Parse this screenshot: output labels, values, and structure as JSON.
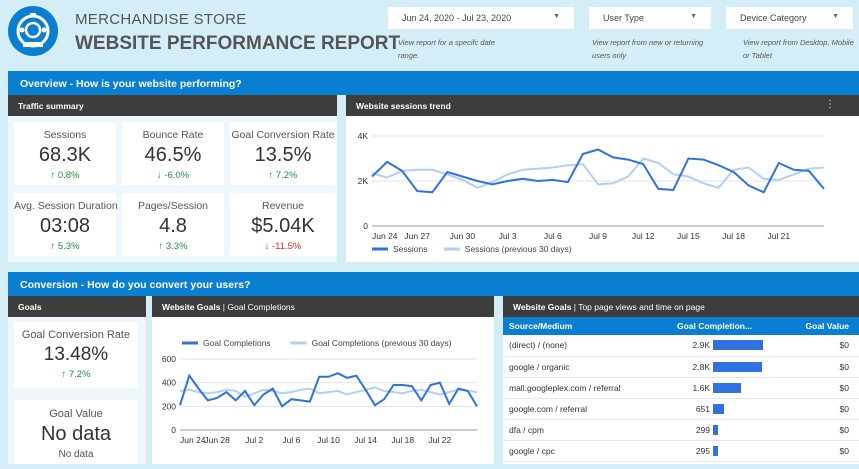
{
  "header": {
    "store": "MERCHANDISE STORE",
    "report": "WEBSITE PERFORMANCE REPORT",
    "date_range": "Jun 24, 2020 - Jul 23, 2020",
    "date_hint": "View report for a specifc date range.",
    "user_type": "User Type",
    "user_hint": "View report from new or returning users only",
    "device": "Device Category",
    "device_hint": "View report from Desktop, Mobile or Tablet"
  },
  "overview": {
    "title": "Overview -  How is your website performing?",
    "traffic_title": "Traffic summary",
    "sessions_title": "Website sessions trend",
    "kpis": [
      {
        "label": "Sessions",
        "value": "68.3K",
        "delta": "↑ 0.8%",
        "dir": "up"
      },
      {
        "label": "Bounce Rate",
        "value": "46.5%",
        "delta": "↓ -6.0%",
        "dir": "up"
      },
      {
        "label": "Goal Conversion Rate",
        "value": "13.5%",
        "delta": "↑ 7.2%",
        "dir": "up"
      },
      {
        "label": "Avg. Session Duration",
        "value": "03:08",
        "delta": "↑ 5.3%",
        "dir": "up"
      },
      {
        "label": "Pages/Session",
        "value": "4.8",
        "delta": "↑ 3.3%",
        "dir": "up"
      },
      {
        "label": "Revenue",
        "value": "$5.04K",
        "delta": "↓ -11.5%",
        "dir": "dn"
      }
    ]
  },
  "conversion": {
    "title": "Conversion -  How do you convert your users?",
    "goals_title": "Goals",
    "chart_title_bold": "Website Goals",
    "chart_title_rest": " | Goal Completions",
    "table_title_bold": "Website Goals",
    "table_title_rest": " | Top page views and time on page",
    "goal_rate_label": "Goal Conversion Rate",
    "goal_rate_value": "13.48%",
    "goal_rate_delta": "↑ 7.2%",
    "goal_value_label": "Goal Value",
    "goal_value_value": "No data",
    "goal_value_sub": "No data",
    "table": {
      "headers": [
        "Source/Medium",
        "Goal Completion...",
        "Goal Value"
      ],
      "rows": [
        {
          "source": "(direct) / (none)",
          "completions": "2.9K",
          "frac": 1.0,
          "value": "$0"
        },
        {
          "source": "google / organic",
          "completions": "2.8K",
          "frac": 0.97,
          "value": "$0"
        },
        {
          "source": "mall.googleplex.com / referral",
          "completions": "1.6K",
          "frac": 0.55,
          "value": "$0"
        },
        {
          "source": "google.com / referral",
          "completions": "651",
          "frac": 0.22,
          "value": "$0"
        },
        {
          "source": "dfa / cpm",
          "completions": "299",
          "frac": 0.1,
          "value": "$0"
        },
        {
          "source": "google / cpc",
          "completions": "295",
          "frac": 0.1,
          "value": "$0"
        }
      ]
    }
  },
  "chart_data": [
    {
      "type": "line",
      "title": "Website sessions trend",
      "ylim": [
        0,
        4000
      ],
      "yticks": [
        "4K",
        "2K",
        "0"
      ],
      "tick_values": [
        4000,
        2000,
        0
      ],
      "xticks": [
        "Jun 24",
        "Jun 27",
        "Jun 30",
        "Jul 3",
        "Jul 6",
        "Jul 9",
        "Jul 12",
        "Jul 15",
        "Jul 18",
        "Jul 21"
      ],
      "series": [
        {
          "name": "Sessions",
          "color": "#2f72e0",
          "values": [
            2200,
            2850,
            2450,
            1550,
            1500,
            2400,
            2200,
            2000,
            1850,
            2000,
            2100,
            2000,
            2050,
            1950,
            3200,
            3400,
            3050,
            2950,
            2750,
            1650,
            1600,
            3000,
            2950,
            2700,
            2400,
            1800,
            1500,
            2800,
            2500,
            2450,
            1650
          ]
        },
        {
          "name": "Sessions (previous 30 days)",
          "color": "#b1d0f5",
          "values": [
            2350,
            2150,
            2450,
            2500,
            2500,
            2300,
            2050,
            1700,
            1950,
            2300,
            2500,
            2550,
            2600,
            2700,
            2750,
            1850,
            1900,
            2200,
            3000,
            2800,
            2300,
            2200,
            1900,
            1700,
            2500,
            2600,
            2100,
            2050,
            2300,
            2550,
            2600
          ]
        }
      ]
    },
    {
      "type": "line",
      "title": "Goal Completions",
      "ylim": [
        0,
        600
      ],
      "yticks": [
        "600",
        "400",
        "200",
        "0"
      ],
      "tick_values": [
        600,
        400,
        200,
        0
      ],
      "xticks": [
        "Jun 24",
        "Jun 28",
        "Jul 2",
        "Jul 6",
        "Jul 10",
        "Jul 14",
        "Jul 18",
        "Jul 22"
      ],
      "series": [
        {
          "name": "Goal Completions",
          "color": "#2f72e0",
          "values": [
            210,
            460,
            350,
            250,
            270,
            320,
            250,
            330,
            210,
            300,
            350,
            200,
            260,
            250,
            240,
            450,
            450,
            480,
            440,
            460,
            340,
            210,
            260,
            380,
            380,
            370,
            250,
            380,
            400,
            220,
            350,
            330,
            200
          ]
        },
        {
          "name": "Goal Completions (previous 30 days)",
          "color": "#b1d0f5",
          "values": [
            330,
            340,
            320,
            310,
            320,
            340,
            330,
            280,
            310,
            340,
            330,
            310,
            320,
            340,
            350,
            310,
            320,
            330,
            300,
            320,
            340,
            360,
            330,
            320,
            310,
            330,
            340,
            320,
            300,
            320,
            340,
            330,
            320
          ]
        }
      ]
    }
  ]
}
